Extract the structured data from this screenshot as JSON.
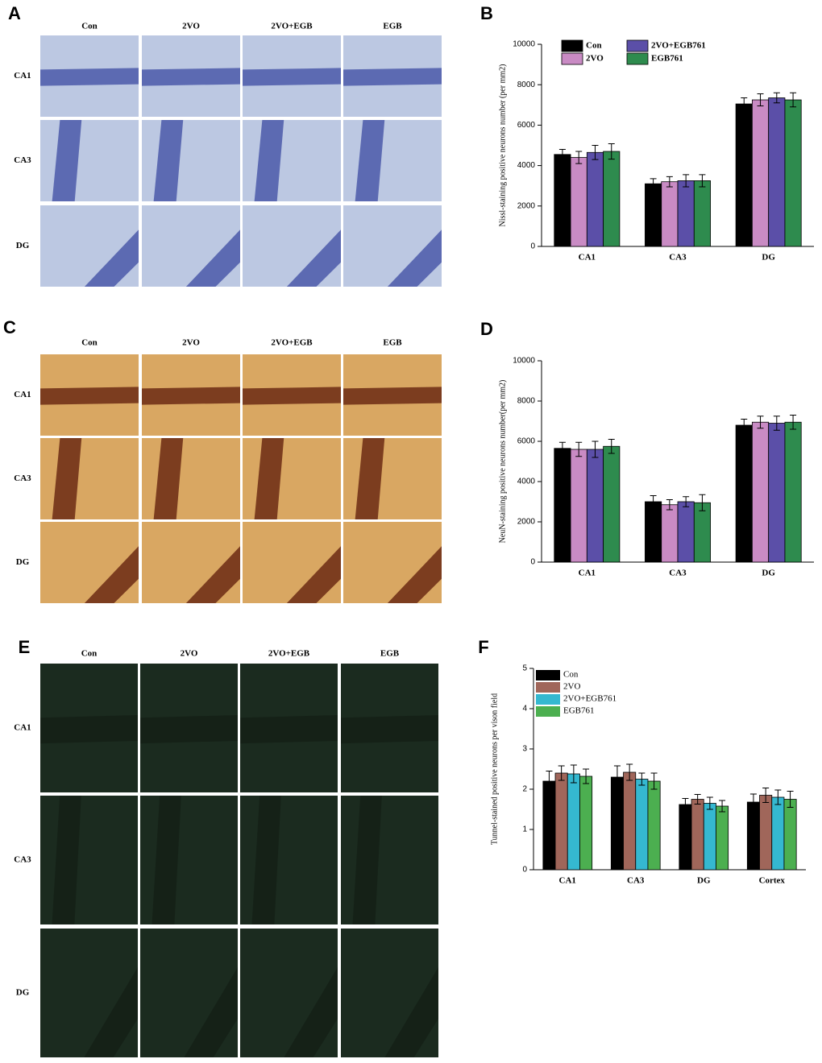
{
  "panels": [
    {
      "label": "A",
      "columns": [
        "Con",
        "2VO",
        "2VO+EGB",
        "EGB"
      ],
      "rows": [
        "CA1",
        "CA3",
        "DG"
      ]
    },
    {
      "label": "C",
      "columns": [
        "Con",
        "2VO",
        "2VO+EGB",
        "EGB"
      ],
      "rows": [
        "CA1",
        "CA3",
        "DG"
      ]
    },
    {
      "label": "E",
      "columns": [
        "Con",
        "2VO",
        "2VO+EGB",
        "EGB"
      ],
      "rows": [
        "CA1",
        "CA3",
        "DG"
      ]
    }
  ],
  "chart_data": [
    {
      "type": "bar",
      "label": "B",
      "ylabel": "Nissl-staining positive neurons number (per mm2)",
      "categories": [
        "CA1",
        "CA3",
        "DG"
      ],
      "ylim": [
        0,
        10000
      ],
      "yticks": [
        0,
        2000,
        4000,
        6000,
        8000,
        10000
      ],
      "legend": "top",
      "series": [
        {
          "name": "Con",
          "color": "#000000",
          "values": [
            4550,
            3100,
            7050
          ],
          "errors": [
            250,
            250,
            300
          ]
        },
        {
          "name": "2VO",
          "color": "#c98bc4",
          "values": [
            4400,
            3200,
            7250
          ],
          "errors": [
            300,
            250,
            300
          ]
        },
        {
          "name": "2VO+EGB761",
          "color": "#5b4fa8",
          "values": [
            4650,
            3250,
            7350
          ],
          "errors": [
            350,
            300,
            250
          ]
        },
        {
          "name": "EGB761",
          "color": "#2e8b4e",
          "values": [
            4700,
            3250,
            7250
          ],
          "errors": [
            380,
            300,
            350
          ]
        }
      ]
    },
    {
      "type": "bar",
      "label": "D",
      "ylabel": "NeuN-staining positive neurons number(per mm2)",
      "categories": [
        "CA1",
        "CA3",
        "DG"
      ],
      "ylim": [
        0,
        10000
      ],
      "yticks": [
        0,
        2000,
        4000,
        6000,
        8000,
        10000
      ],
      "series": [
        {
          "color": "#000000",
          "values": [
            5650,
            3000,
            6800
          ],
          "errors": [
            300,
            300,
            300
          ]
        },
        {
          "color": "#c98bc4",
          "values": [
            5600,
            2850,
            6950
          ],
          "errors": [
            350,
            250,
            300
          ]
        },
        {
          "color": "#5b4fa8",
          "values": [
            5600,
            3000,
            6900
          ],
          "errors": [
            400,
            250,
            350
          ]
        },
        {
          "color": "#2e8b4e",
          "values": [
            5750,
            2950,
            6950
          ],
          "errors": [
            350,
            400,
            350
          ]
        }
      ]
    },
    {
      "type": "bar",
      "label": "F",
      "ylabel": "Tunnel-stained positive neurons per vison field",
      "categories": [
        "CA1",
        "CA3",
        "DG",
        "Cortex"
      ],
      "ylim": [
        0,
        5
      ],
      "yticks": [
        0,
        1,
        2,
        3,
        4,
        5
      ],
      "legend": "upper left",
      "series": [
        {
          "name": "Con",
          "color": "#000000",
          "values": [
            2.2,
            2.3,
            1.62,
            1.68
          ],
          "errors": [
            0.25,
            0.28,
            0.15,
            0.2
          ]
        },
        {
          "name": "2VO",
          "color": "#a0665a",
          "values": [
            2.4,
            2.42,
            1.75,
            1.85
          ],
          "errors": [
            0.18,
            0.2,
            0.12,
            0.18
          ]
        },
        {
          "name": "2VO+EGB761",
          "color": "#35b8d0",
          "values": [
            2.38,
            2.25,
            1.65,
            1.8
          ],
          "errors": [
            0.22,
            0.15,
            0.15,
            0.18
          ]
        },
        {
          "name": "EGB761",
          "color": "#4caf50",
          "values": [
            2.32,
            2.2,
            1.58,
            1.75
          ],
          "errors": [
            0.18,
            0.2,
            0.14,
            0.2
          ]
        }
      ]
    }
  ]
}
